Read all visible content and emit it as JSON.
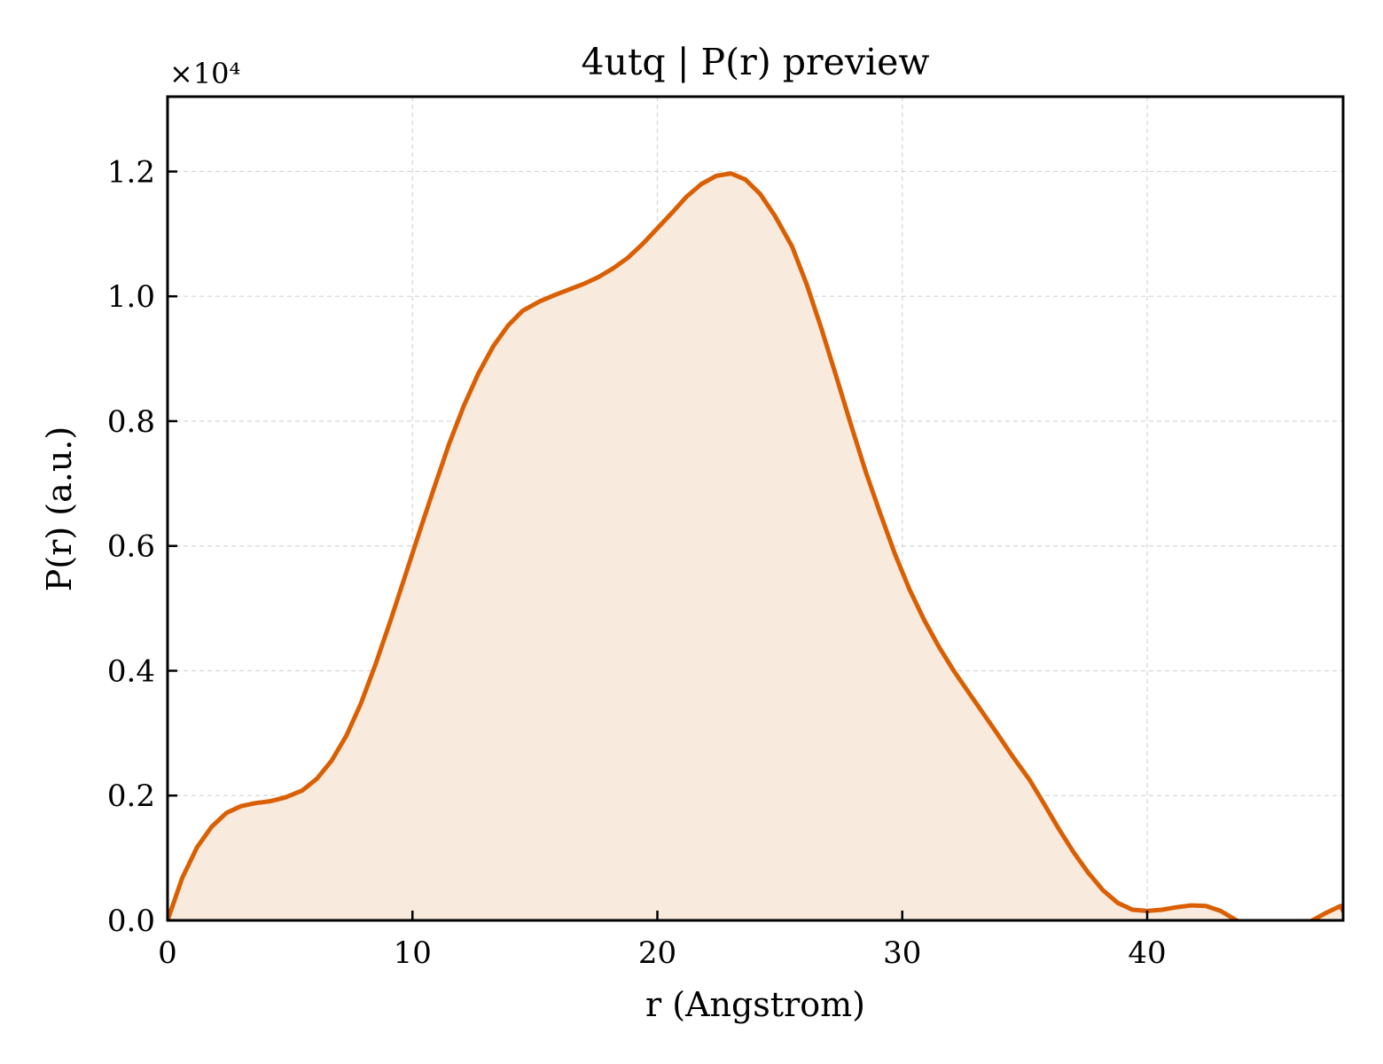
{
  "chart_data": {
    "type": "area",
    "title": "4utq | P(r) preview",
    "xlabel": "r (Angstrom)",
    "ylabel": "P(r) (a.u.)",
    "y_multiplier_label": "×10⁴",
    "xlim": [
      0,
      48
    ],
    "ylim": [
      0,
      13200
    ],
    "x_ticks": [
      0,
      10,
      20,
      30,
      40
    ],
    "x_tick_labels": [
      "0",
      "10",
      "20",
      "30",
      "40"
    ],
    "y_ticks": [
      0,
      2000,
      4000,
      6000,
      8000,
      10000,
      12000
    ],
    "y_tick_labels": [
      "0.0",
      "0.2",
      "0.4",
      "0.6",
      "0.8",
      "1.0",
      "1.2"
    ],
    "grid": true,
    "line_color": "#d95f02",
    "fill_color": "#f9eade",
    "series": [
      {
        "x": [
          0.0,
          0.6,
          1.2,
          1.8,
          2.4,
          3.0,
          3.6,
          4.2,
          4.8,
          5.5,
          6.1,
          6.7,
          7.3,
          7.9,
          8.5,
          9.1,
          9.7,
          10.3,
          10.9,
          11.5,
          12.1,
          12.7,
          13.3,
          13.9,
          14.5,
          15.2,
          15.8,
          16.4,
          17.0,
          17.6,
          18.2,
          18.8,
          19.4,
          20.0,
          20.6,
          21.2,
          21.8,
          22.4,
          23.0,
          23.6,
          24.2,
          24.8,
          25.5,
          26.1,
          26.7,
          27.3,
          27.9,
          28.5,
          29.1,
          29.7,
          30.3,
          30.9,
          31.5,
          32.1,
          32.7,
          33.3,
          33.9,
          34.5,
          35.2,
          35.8,
          36.4,
          37.0,
          37.6,
          38.2,
          38.8,
          39.4,
          40.0,
          40.6,
          41.2,
          41.8,
          42.4,
          43.0,
          43.6,
          44.2,
          44.8,
          46.7,
          47.3,
          47.9,
          48.0
        ],
        "y": [
          0,
          680,
          1170,
          1500,
          1720,
          1830,
          1880,
          1910,
          1970,
          2080,
          2270,
          2560,
          2960,
          3480,
          4110,
          4800,
          5520,
          6240,
          6950,
          7640,
          8250,
          8770,
          9200,
          9530,
          9770,
          9920,
          10020,
          10110,
          10200,
          10310,
          10450,
          10620,
          10840,
          11090,
          11340,
          11600,
          11800,
          11930,
          11970,
          11870,
          11640,
          11290,
          10800,
          10190,
          9480,
          8720,
          7950,
          7200,
          6520,
          5870,
          5300,
          4810,
          4380,
          4000,
          3660,
          3320,
          2980,
          2630,
          2250,
          1860,
          1460,
          1090,
          760,
          480,
          280,
          170,
          150,
          170,
          210,
          240,
          230,
          150,
          10,
          -110,
          -200,
          -10,
          120,
          230,
          150
        ]
      }
    ]
  }
}
